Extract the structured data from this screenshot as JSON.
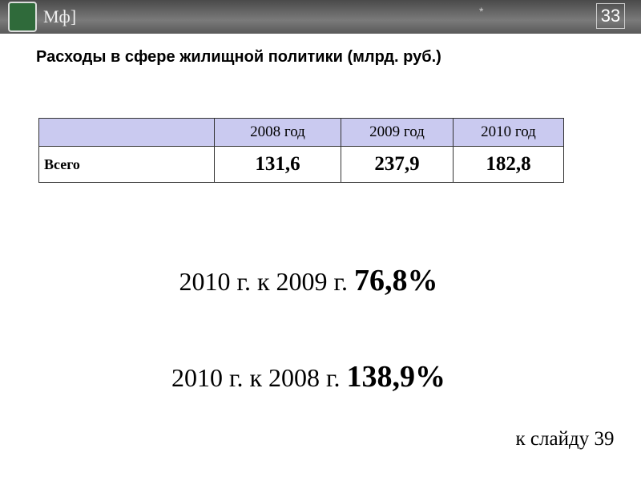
{
  "header": {
    "logo_text": "Мф]",
    "marker": "*",
    "slide_number": "33"
  },
  "title": "Расходы в сфере жилищной политики (млрд. руб.)",
  "table": {
    "columns": [
      "2008 год",
      "2009 год",
      "2010 год"
    ],
    "rows": [
      {
        "label": "Всего",
        "cells": [
          "131,6",
          "237,9",
          "182,8"
        ]
      }
    ]
  },
  "comparisons": [
    {
      "text": "2010 г. к 2009 г.",
      "value": "76,8%"
    },
    {
      "text": "2010 г. к 2008 г.",
      "value": "138,9%"
    }
  ],
  "link": "к слайду 39"
}
